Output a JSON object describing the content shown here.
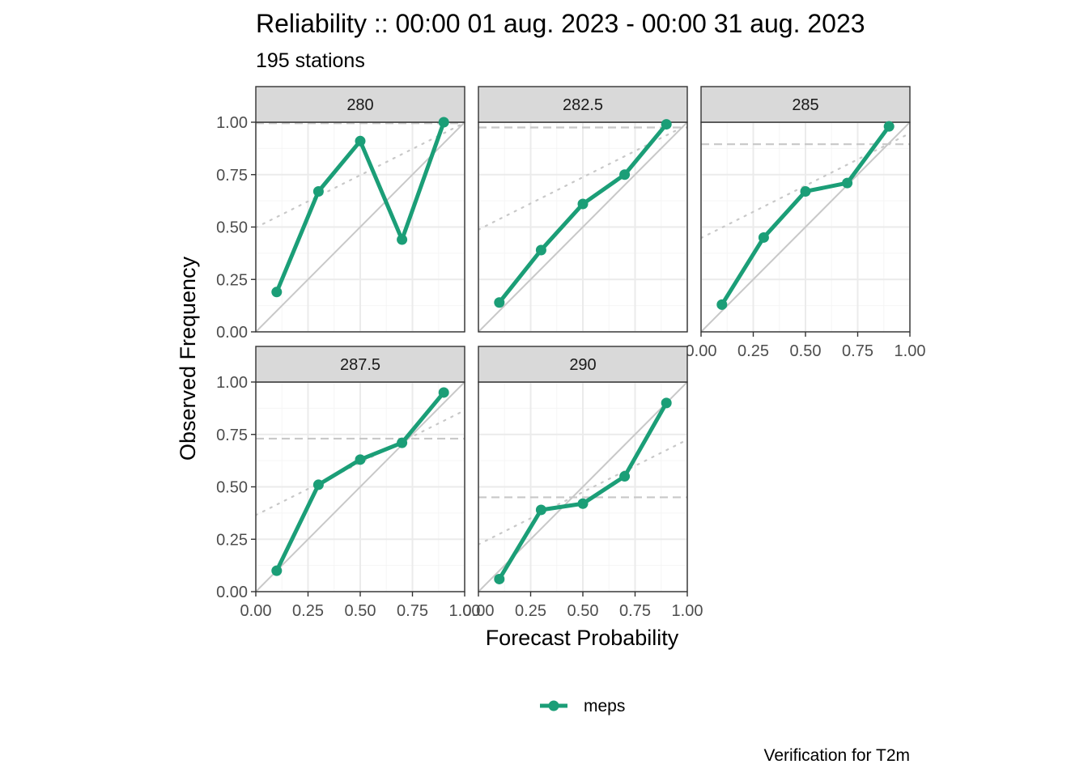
{
  "chart_data": {
    "type": "line",
    "title": "Reliability :: 00:00 01 aug. 2023 - 00:00 31 aug. 2023",
    "subtitle": "195 stations",
    "xlabel": "Forecast Probability",
    "ylabel": "Observed Frequency",
    "caption": "Verification for T2m",
    "xlim": [
      0,
      1
    ],
    "ylim": [
      0,
      1
    ],
    "x_ticks": [
      "0.00",
      "0.25",
      "0.50",
      "0.75",
      "1.00"
    ],
    "y_ticks": [
      "0.00",
      "0.25",
      "0.50",
      "0.75",
      "1.00"
    ],
    "grid": true,
    "legend_position": "bottom",
    "legend": [
      {
        "name": "meps",
        "color": "#1b9e77"
      }
    ],
    "panels": [
      {
        "label": "280",
        "x": [
          0.1,
          0.3,
          0.5,
          0.7,
          0.9
        ],
        "series": [
          {
            "name": "meps",
            "values": [
              0.19,
              0.67,
              0.91,
              0.44,
              1.0
            ]
          }
        ],
        "climatology": 0.995
      },
      {
        "label": "282.5",
        "x": [
          0.1,
          0.3,
          0.5,
          0.7,
          0.9
        ],
        "series": [
          {
            "name": "meps",
            "values": [
              0.14,
              0.39,
              0.61,
              0.75,
              0.99
            ]
          }
        ],
        "climatology": 0.975
      },
      {
        "label": "285",
        "x": [
          0.1,
          0.3,
          0.5,
          0.7,
          0.9
        ],
        "series": [
          {
            "name": "meps",
            "values": [
              0.13,
              0.45,
              0.67,
              0.71,
              0.98
            ]
          }
        ],
        "climatology": 0.895
      },
      {
        "label": "287.5",
        "x": [
          0.1,
          0.3,
          0.5,
          0.7,
          0.9
        ],
        "series": [
          {
            "name": "meps",
            "values": [
              0.1,
              0.51,
              0.63,
              0.71,
              0.95
            ]
          }
        ],
        "climatology": 0.73
      },
      {
        "label": "290",
        "x": [
          0.1,
          0.3,
          0.5,
          0.7,
          0.9
        ],
        "series": [
          {
            "name": "meps",
            "values": [
              0.06,
              0.39,
              0.42,
              0.55,
              0.9
            ]
          }
        ],
        "climatology": 0.45
      }
    ],
    "colors": {
      "series": "#1b9e77",
      "reference": "#c8c8c8",
      "grid_major": "#ebebeb",
      "grid_minor": "#f5f5f5",
      "strip_fill": "#d9d9d9"
    }
  }
}
